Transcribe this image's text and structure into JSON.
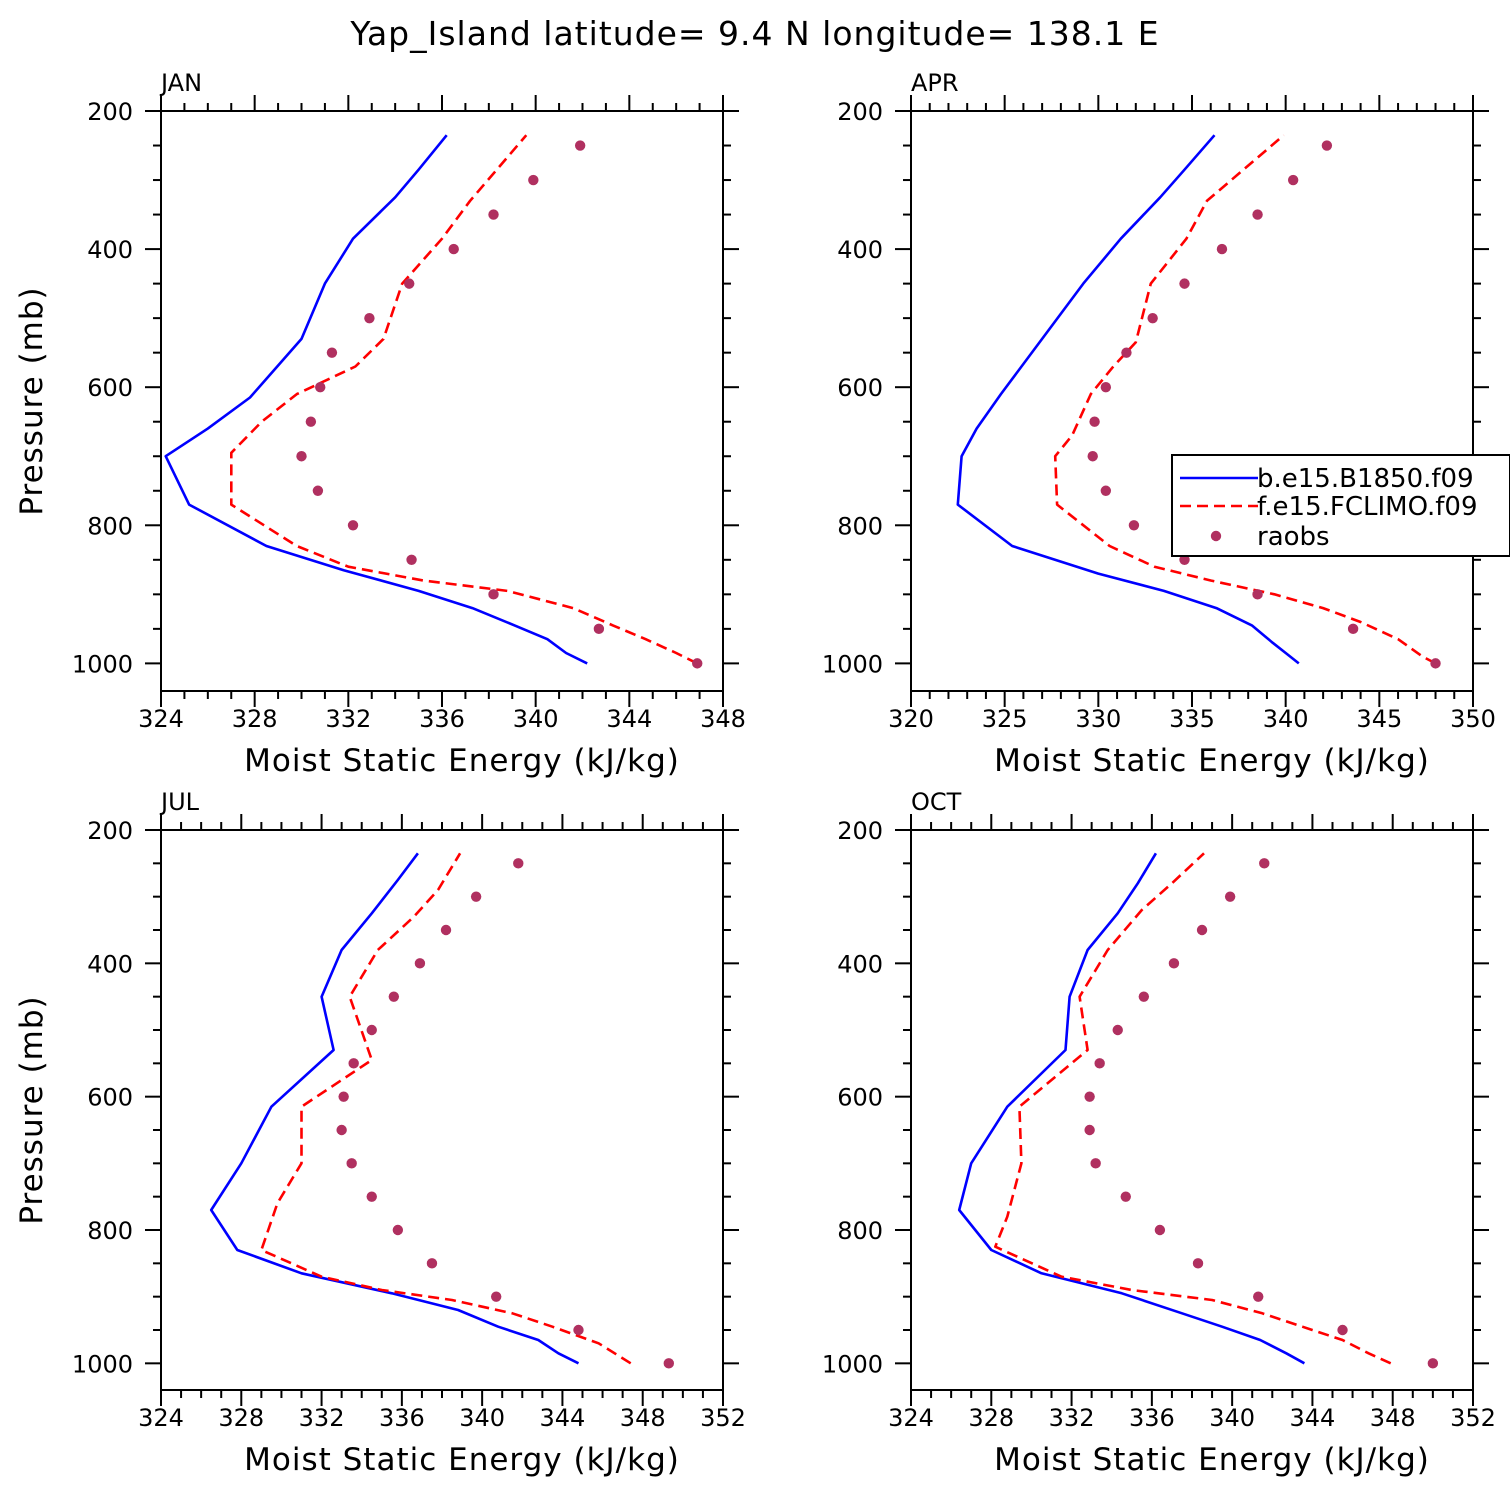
{
  "title": "Yap_Island  latitude= 9.4 N longitude= 138.1 E",
  "colors": {
    "series1": "#0000ff",
    "series2": "#ff0000",
    "series3": "#b03060"
  },
  "legend": [
    {
      "label": "b.e15.B1850.f09",
      "style": "solid-line",
      "color": "#0000ff"
    },
    {
      "label": "f.e15.FCLIMO.f09",
      "style": "dashed-line",
      "color": "#ff0000"
    },
    {
      "label": "raobs",
      "style": "marker",
      "color": "#b03060"
    }
  ],
  "chart_data": [
    {
      "type": "line",
      "title": "JAN",
      "xlabel": "Moist Static Energy (kJ/kg)",
      "ylabel": "Pressure (mb)",
      "xlim": [
        324,
        348
      ],
      "ylim": [
        1000,
        200
      ],
      "xticks": [
        "324",
        "328",
        "332",
        "336",
        "340",
        "344",
        "348"
      ],
      "yticks": [
        "200",
        "400",
        "600",
        "800",
        "1000"
      ],
      "series": [
        {
          "name": "b.e15.B1850.f09",
          "points": [
            [
              342.2,
              1000
            ],
            [
              341.3,
              985
            ],
            [
              340.5,
              965
            ],
            [
              339.1,
              945
            ],
            [
              337.3,
              920
            ],
            [
              335.0,
              895
            ],
            [
              331.8,
              865
            ],
            [
              328.5,
              830
            ],
            [
              325.2,
              770
            ],
            [
              324.2,
              700
            ],
            [
              326.0,
              660
            ],
            [
              327.8,
              615
            ],
            [
              330.0,
              530
            ],
            [
              331.0,
              450
            ],
            [
              332.2,
              385
            ],
            [
              334.0,
              325
            ],
            [
              335.0,
              285
            ],
            [
              336.2,
              235
            ]
          ]
        },
        {
          "name": "f.e15.FCLIMO.f09",
          "points": [
            [
              346.9,
              1000
            ],
            [
              346.0,
              985
            ],
            [
              344.7,
              965
            ],
            [
              343.3,
              945
            ],
            [
              341.6,
              920
            ],
            [
              338.8,
              895
            ],
            [
              335.2,
              880
            ],
            [
              332.0,
              860
            ],
            [
              329.8,
              830
            ],
            [
              327.0,
              770
            ],
            [
              327.0,
              695
            ],
            [
              328.3,
              650
            ],
            [
              329.8,
              610
            ],
            [
              332.3,
              570
            ],
            [
              333.5,
              530
            ],
            [
              334.3,
              450
            ],
            [
              336.0,
              385
            ],
            [
              337.2,
              330
            ],
            [
              339.6,
              235
            ]
          ]
        },
        {
          "name": "raobs",
          "points": [
            [
              346.9,
              1000
            ],
            [
              342.7,
              950
            ],
            [
              338.2,
              900
            ],
            [
              334.7,
              850
            ],
            [
              332.2,
              800
            ],
            [
              330.7,
              750
            ],
            [
              330.0,
              700
            ],
            [
              330.4,
              650
            ],
            [
              330.8,
              600
            ],
            [
              331.3,
              550
            ],
            [
              332.9,
              500
            ],
            [
              334.6,
              450
            ],
            [
              336.5,
              400
            ],
            [
              338.2,
              350
            ],
            [
              339.9,
              300
            ],
            [
              341.9,
              250
            ]
          ]
        }
      ]
    },
    {
      "type": "line",
      "title": "APR",
      "xlabel": "Moist Static Energy (kJ/kg)",
      "ylabel": "",
      "xlim": [
        320,
        350
      ],
      "ylim": [
        1000,
        200
      ],
      "xticks": [
        "320",
        "325",
        "330",
        "335",
        "340",
        "345",
        "350"
      ],
      "yticks": [
        "200",
        "400",
        "600",
        "800",
        "1000"
      ],
      "series": [
        {
          "name": "b.e15.B1850.f09",
          "points": [
            [
              340.7,
              1000
            ],
            [
              340.0,
              985
            ],
            [
              339.3,
              970
            ],
            [
              338.2,
              945
            ],
            [
              336.3,
              920
            ],
            [
              333.5,
              895
            ],
            [
              330.0,
              870
            ],
            [
              325.4,
              830
            ],
            [
              322.5,
              770
            ],
            [
              322.7,
              700
            ],
            [
              323.5,
              660
            ],
            [
              324.8,
              610
            ],
            [
              327.0,
              530
            ],
            [
              329.2,
              450
            ],
            [
              331.2,
              385
            ],
            [
              333.3,
              325
            ],
            [
              334.6,
              285
            ],
            [
              336.2,
              235
            ]
          ]
        },
        {
          "name": "f.e15.FCLIMO.f09",
          "points": [
            [
              348.0,
              1000
            ],
            [
              347.3,
              990
            ],
            [
              346.0,
              965
            ],
            [
              344.0,
              940
            ],
            [
              342.0,
              920
            ],
            [
              339.4,
              900
            ],
            [
              336.0,
              880
            ],
            [
              333.0,
              860
            ],
            [
              330.6,
              830
            ],
            [
              327.8,
              770
            ],
            [
              327.7,
              700
            ],
            [
              328.6,
              670
            ],
            [
              329.6,
              610
            ],
            [
              330.8,
              570
            ],
            [
              332.0,
              535
            ],
            [
              332.8,
              450
            ],
            [
              334.7,
              385
            ],
            [
              335.8,
              330
            ],
            [
              339.9,
              235
            ]
          ]
        },
        {
          "name": "raobs",
          "points": [
            [
              348.0,
              1000
            ],
            [
              343.6,
              950
            ],
            [
              338.5,
              900
            ],
            [
              334.6,
              850
            ],
            [
              331.9,
              800
            ],
            [
              330.4,
              750
            ],
            [
              329.7,
              700
            ],
            [
              329.8,
              650
            ],
            [
              330.4,
              600
            ],
            [
              331.5,
              550
            ],
            [
              332.9,
              500
            ],
            [
              334.6,
              450
            ],
            [
              336.6,
              400
            ],
            [
              338.5,
              350
            ],
            [
              340.4,
              300
            ],
            [
              342.2,
              250
            ]
          ]
        }
      ]
    },
    {
      "type": "line",
      "title": "JUL",
      "xlabel": "Moist Static Energy (kJ/kg)",
      "ylabel": "Pressure (mb)",
      "xlim": [
        324,
        352
      ],
      "ylim": [
        1000,
        200
      ],
      "xticks": [
        "324",
        "328",
        "332",
        "336",
        "340",
        "344",
        "348",
        "352"
      ],
      "yticks": [
        "200",
        "400",
        "600",
        "800",
        "1000"
      ],
      "series": [
        {
          "name": "b.e15.B1850.f09",
          "points": [
            [
              344.8,
              1000
            ],
            [
              343.8,
              985
            ],
            [
              342.8,
              965
            ],
            [
              340.8,
              945
            ],
            [
              338.8,
              920
            ],
            [
              335.5,
              895
            ],
            [
              331.0,
              865
            ],
            [
              327.8,
              830
            ],
            [
              326.5,
              770
            ],
            [
              328.0,
              700
            ],
            [
              329.5,
              615
            ],
            [
              332.6,
              530
            ],
            [
              332.0,
              450
            ],
            [
              333.0,
              380
            ],
            [
              334.5,
              325
            ],
            [
              335.8,
              275
            ],
            [
              336.8,
              235
            ]
          ]
        },
        {
          "name": "f.e15.FCLIMO.f09",
          "points": [
            [
              347.4,
              1000
            ],
            [
              345.8,
              970
            ],
            [
              343.5,
              945
            ],
            [
              341.5,
              925
            ],
            [
              338.5,
              905
            ],
            [
              335.0,
              890
            ],
            [
              332.0,
              870
            ],
            [
              329.0,
              830
            ],
            [
              329.8,
              760
            ],
            [
              331.0,
              700
            ],
            [
              331.0,
              615
            ],
            [
              334.5,
              545
            ],
            [
              333.4,
              450
            ],
            [
              334.8,
              380
            ],
            [
              336.6,
              330
            ],
            [
              337.8,
              290
            ],
            [
              338.9,
              235
            ]
          ]
        },
        {
          "name": "raobs",
          "points": [
            [
              349.3,
              1000
            ],
            [
              344.8,
              950
            ],
            [
              340.7,
              900
            ],
            [
              337.5,
              850
            ],
            [
              335.8,
              800
            ],
            [
              334.5,
              750
            ],
            [
              333.5,
              700
            ],
            [
              333.0,
              650
            ],
            [
              333.1,
              600
            ],
            [
              333.6,
              550
            ],
            [
              334.5,
              500
            ],
            [
              335.6,
              450
            ],
            [
              336.9,
              400
            ],
            [
              338.2,
              350
            ],
            [
              339.7,
              300
            ],
            [
              341.8,
              250
            ]
          ]
        }
      ]
    },
    {
      "type": "line",
      "title": "OCT",
      "xlabel": "Moist Static Energy (kJ/kg)",
      "ylabel": "",
      "xlim": [
        324,
        352
      ],
      "ylim": [
        1000,
        200
      ],
      "xticks": [
        "324",
        "328",
        "332",
        "336",
        "340",
        "344",
        "348",
        "352"
      ],
      "yticks": [
        "200",
        "400",
        "600",
        "800",
        "1000"
      ],
      "series": [
        {
          "name": "b.e15.B1850.f09",
          "points": [
            [
              343.6,
              1000
            ],
            [
              342.7,
              985
            ],
            [
              341.4,
              965
            ],
            [
              339.5,
              945
            ],
            [
              337.5,
              925
            ],
            [
              334.5,
              895
            ],
            [
              330.5,
              865
            ],
            [
              328.0,
              830
            ],
            [
              326.4,
              770
            ],
            [
              327.0,
              700
            ],
            [
              328.8,
              615
            ],
            [
              331.7,
              530
            ],
            [
              331.9,
              450
            ],
            [
              332.8,
              380
            ],
            [
              334.3,
              325
            ],
            [
              335.3,
              280
            ],
            [
              336.2,
              235
            ]
          ]
        },
        {
          "name": "f.e15.FCLIMO.f09",
          "points": [
            [
              347.9,
              1000
            ],
            [
              346.8,
              985
            ],
            [
              345.5,
              965
            ],
            [
              343.5,
              945
            ],
            [
              341.5,
              925
            ],
            [
              339.0,
              905
            ],
            [
              335.0,
              890
            ],
            [
              331.5,
              870
            ],
            [
              328.2,
              825
            ],
            [
              328.8,
              780
            ],
            [
              329.5,
              700
            ],
            [
              329.4,
              615
            ],
            [
              332.8,
              530
            ],
            [
              332.4,
              450
            ],
            [
              333.8,
              380
            ],
            [
              335.5,
              320
            ],
            [
              337.0,
              280
            ],
            [
              338.6,
              235
            ]
          ]
        },
        {
          "name": "raobs",
          "points": [
            [
              350.0,
              1000
            ],
            [
              345.5,
              950
            ],
            [
              341.3,
              900
            ],
            [
              338.3,
              850
            ],
            [
              336.4,
              800
            ],
            [
              334.7,
              750
            ],
            [
              333.2,
              700
            ],
            [
              332.9,
              650
            ],
            [
              332.9,
              600
            ],
            [
              333.4,
              550
            ],
            [
              334.3,
              500
            ],
            [
              335.6,
              450
            ],
            [
              337.1,
              400
            ],
            [
              338.5,
              350
            ],
            [
              339.9,
              300
            ],
            [
              341.6,
              250
            ]
          ]
        }
      ]
    }
  ]
}
